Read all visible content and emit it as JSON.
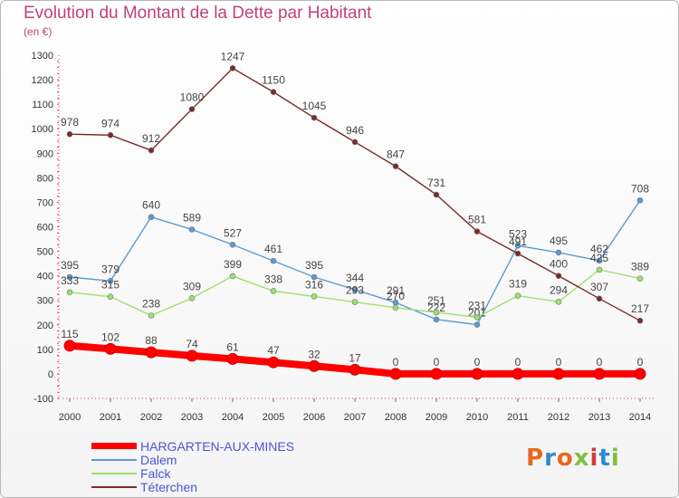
{
  "title": "Evolution du Montant de la Dette par Habitant",
  "unit": "(en €)",
  "logo_text": "Proxiti",
  "logo_colors": [
    "#e8681f",
    "#2e8bd1",
    "#e8681f",
    "#7cc242",
    "#d83a3a",
    "#2e8bd1",
    "#7cc242"
  ],
  "chart_data": {
    "type": "line",
    "x": [
      "2000",
      "2001",
      "2002",
      "2003",
      "2004",
      "2005",
      "2006",
      "2007",
      "2008",
      "2009",
      "2010",
      "2011",
      "2012",
      "2013",
      "2014"
    ],
    "ylim": [
      -100,
      1300
    ],
    "yticks": [
      -100,
      0,
      100,
      200,
      300,
      400,
      500,
      600,
      700,
      800,
      900,
      1000,
      1100,
      1200,
      1300
    ],
    "grid": false,
    "legend_position": "bottom-left",
    "series": [
      {
        "name": "HARGARTEN-AUX-MINES",
        "color": "#ff0000",
        "thick": true,
        "values": [
          115,
          102,
          88,
          74,
          61,
          47,
          32,
          17,
          0,
          0,
          0,
          0,
          0,
          0,
          0
        ]
      },
      {
        "name": "Dalem",
        "color": "#5b9bd5",
        "thick": false,
        "values": [
          395,
          379,
          640,
          589,
          527,
          461,
          395,
          344,
          291,
          222,
          201,
          523,
          495,
          462,
          708
        ]
      },
      {
        "name": "Falck",
        "color": "#9ee06a",
        "thick": false,
        "values": [
          333,
          315,
          238,
          309,
          399,
          338,
          316,
          293,
          270,
          251,
          231,
          319,
          294,
          425,
          389
        ]
      },
      {
        "name": "Téterchen",
        "color": "#7a2a2a",
        "thick": false,
        "values": [
          978,
          974,
          912,
          1080,
          1247,
          1150,
          1045,
          946,
          847,
          731,
          581,
          491,
          400,
          307,
          217
        ]
      }
    ]
  }
}
